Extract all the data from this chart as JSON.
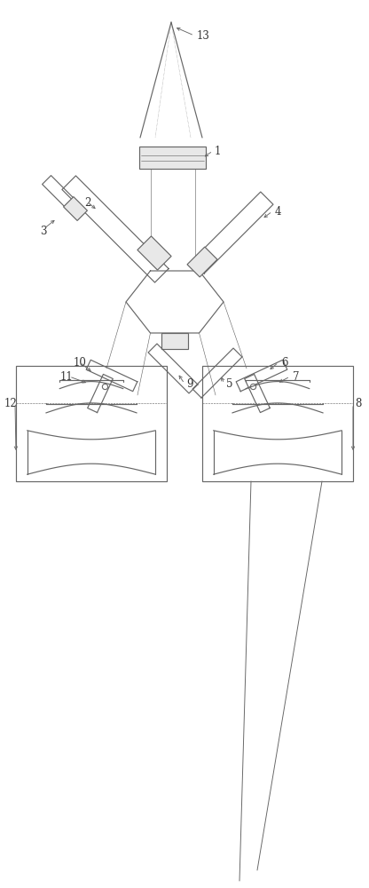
{
  "bg": "#ffffff",
  "lc": "#666666",
  "lw": 0.85,
  "fig_w": 4.16,
  "fig_h": 10.0,
  "dpi": 100,
  "xlim": [
    0,
    416
  ],
  "ylim": [
    0,
    1000
  ]
}
